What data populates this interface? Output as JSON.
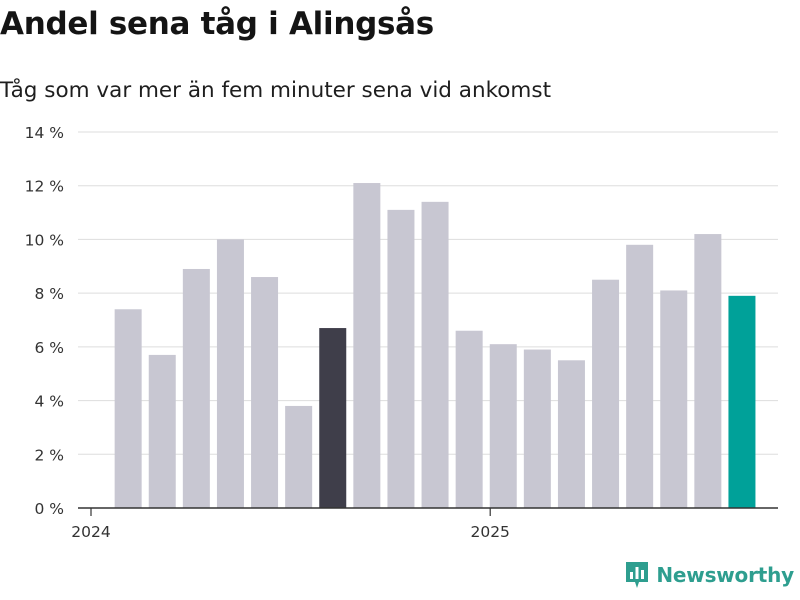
{
  "title": "Andel sena tåg i Alingsås",
  "subtitle": "Tåg som var mer än fem minuter sena vid ankomst",
  "brand": {
    "name": "Newsworthy",
    "icon": "newsworthy-logo-icon",
    "color": "#2e9e8f"
  },
  "colors": {
    "default_bar": "#c8c7d2",
    "highlight_bar": "#3f3e4a",
    "latest_bar": "#00a199",
    "grid": "#dddddd",
    "axis": "#333333"
  },
  "chart_data": {
    "type": "bar",
    "title": "Andel sena tåg i Alingsås",
    "subtitle": "Tåg som var mer än fem minuter sena vid ankomst",
    "xlabel": "",
    "ylabel": "",
    "ylim": [
      0,
      14
    ],
    "y_ticks": [
      0,
      2,
      4,
      6,
      8,
      10,
      12,
      14
    ],
    "y_tick_labels": [
      "0 %",
      "2 %",
      "4 %",
      "6 %",
      "8 %",
      "10 %",
      "12 %",
      "14 %"
    ],
    "x_tick_labels": [
      "2024",
      "2025"
    ],
    "x_tick_months": [
      "2024-01",
      "2025-01"
    ],
    "grid": true,
    "legend": "none",
    "categories": [
      "2024-02",
      "2024-03",
      "2024-04",
      "2024-05",
      "2024-06",
      "2024-07",
      "2024-08",
      "2024-09",
      "2024-10",
      "2024-11",
      "2024-12",
      "2025-01",
      "2025-02",
      "2025-03",
      "2025-04",
      "2025-05",
      "2025-06",
      "2025-07",
      "2025-08"
    ],
    "values": [
      7.4,
      5.7,
      8.9,
      10.0,
      8.6,
      3.8,
      6.7,
      12.1,
      11.1,
      11.4,
      6.6,
      6.1,
      5.9,
      5.5,
      8.5,
      9.8,
      8.1,
      10.2,
      7.9
    ],
    "bar_styles": [
      "default",
      "default",
      "default",
      "default",
      "default",
      "default",
      "highlight",
      "default",
      "default",
      "default",
      "default",
      "default",
      "default",
      "default",
      "default",
      "default",
      "default",
      "default",
      "latest"
    ]
  }
}
